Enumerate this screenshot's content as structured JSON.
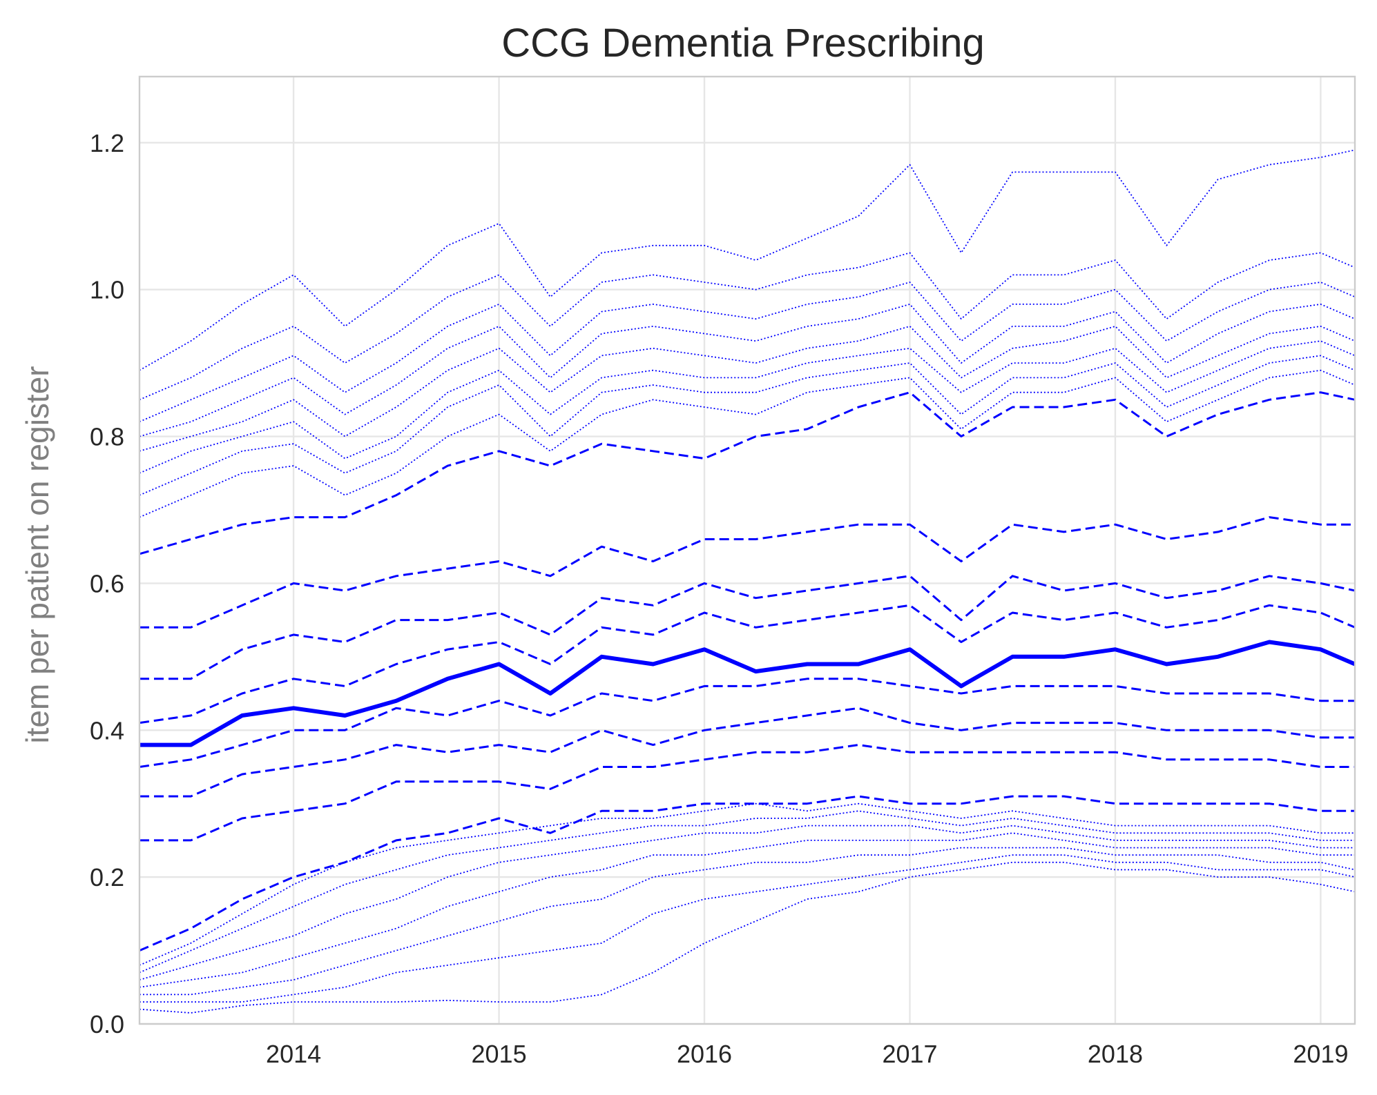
{
  "chart_data": {
    "type": "line",
    "title": "CCG Dementia Prescribing",
    "xlabel": "",
    "ylabel": "item per patient on register",
    "x_range": [
      "2013-04",
      "2019-03"
    ],
    "ylim": [
      0,
      1.29
    ],
    "x_tick_labels": [
      "2014",
      "2015",
      "2016",
      "2017",
      "2018",
      "2019"
    ],
    "y_tick_labels": [
      "0.0",
      "0.2",
      "0.4",
      "0.6",
      "0.8",
      "1.0",
      "1.2"
    ],
    "grid": true,
    "legend": "none",
    "line_color": "#0000ff",
    "line_styles": {
      "median": "solid",
      "inner_deciles": "dashed",
      "outer_percentiles": "dotted"
    },
    "x_dates": [
      "2013-04",
      "2013-07",
      "2013-10",
      "2014-01",
      "2014-04",
      "2014-07",
      "2014-10",
      "2015-01",
      "2015-04",
      "2015-07",
      "2015-10",
      "2016-01",
      "2016-04",
      "2016-07",
      "2016-10",
      "2017-01",
      "2017-04",
      "2017-07",
      "2017-10",
      "2018-01",
      "2018-04",
      "2018-07",
      "2018-10",
      "2019-01",
      "2019-03"
    ],
    "series": [
      {
        "style": "dotted",
        "values": [
          0.02,
          0.015,
          0.025,
          0.03,
          0.03,
          0.03,
          0.032,
          0.03,
          0.03,
          0.04,
          0.07,
          0.11,
          0.14,
          0.17,
          0.18,
          0.2,
          0.21,
          0.22,
          0.22,
          0.21,
          0.21,
          0.2,
          0.2,
          0.19,
          0.18
        ]
      },
      {
        "style": "dotted",
        "values": [
          0.03,
          0.03,
          0.03,
          0.04,
          0.05,
          0.07,
          0.08,
          0.09,
          0.1,
          0.11,
          0.15,
          0.17,
          0.18,
          0.19,
          0.2,
          0.21,
          0.22,
          0.23,
          0.23,
          0.22,
          0.22,
          0.21,
          0.21,
          0.21,
          0.2
        ]
      },
      {
        "style": "dotted",
        "values": [
          0.04,
          0.04,
          0.05,
          0.06,
          0.08,
          0.1,
          0.12,
          0.14,
          0.16,
          0.17,
          0.2,
          0.21,
          0.22,
          0.22,
          0.23,
          0.23,
          0.24,
          0.24,
          0.24,
          0.23,
          0.23,
          0.23,
          0.22,
          0.22,
          0.21
        ]
      },
      {
        "style": "dotted",
        "values": [
          0.05,
          0.06,
          0.07,
          0.09,
          0.11,
          0.13,
          0.16,
          0.18,
          0.2,
          0.21,
          0.23,
          0.23,
          0.24,
          0.25,
          0.25,
          0.25,
          0.25,
          0.26,
          0.25,
          0.24,
          0.24,
          0.24,
          0.24,
          0.23,
          0.23
        ]
      },
      {
        "style": "dotted",
        "values": [
          0.06,
          0.08,
          0.1,
          0.12,
          0.15,
          0.17,
          0.2,
          0.22,
          0.23,
          0.24,
          0.25,
          0.26,
          0.26,
          0.27,
          0.27,
          0.27,
          0.26,
          0.27,
          0.26,
          0.25,
          0.25,
          0.25,
          0.25,
          0.24,
          0.24
        ]
      },
      {
        "style": "dotted",
        "values": [
          0.07,
          0.1,
          0.13,
          0.16,
          0.19,
          0.21,
          0.23,
          0.24,
          0.25,
          0.26,
          0.27,
          0.27,
          0.28,
          0.28,
          0.29,
          0.28,
          0.27,
          0.28,
          0.27,
          0.26,
          0.26,
          0.26,
          0.26,
          0.25,
          0.25
        ]
      },
      {
        "style": "dotted",
        "values": [
          0.08,
          0.11,
          0.15,
          0.19,
          0.22,
          0.24,
          0.25,
          0.26,
          0.27,
          0.28,
          0.28,
          0.29,
          0.3,
          0.29,
          0.3,
          0.29,
          0.28,
          0.29,
          0.28,
          0.27,
          0.27,
          0.27,
          0.27,
          0.26,
          0.26
        ]
      },
      {
        "style": "dashed",
        "values": [
          0.1,
          0.13,
          0.17,
          0.2,
          0.22,
          0.25,
          0.26,
          0.28,
          0.26,
          0.29,
          0.29,
          0.3,
          0.3,
          0.3,
          0.31,
          0.3,
          0.3,
          0.31,
          0.31,
          0.3,
          0.3,
          0.3,
          0.3,
          0.29,
          0.29
        ]
      },
      {
        "style": "dashed",
        "values": [
          0.25,
          0.25,
          0.28,
          0.29,
          0.3,
          0.33,
          0.33,
          0.33,
          0.32,
          0.35,
          0.35,
          0.36,
          0.37,
          0.37,
          0.38,
          0.37,
          0.37,
          0.37,
          0.37,
          0.37,
          0.36,
          0.36,
          0.36,
          0.35,
          0.35
        ]
      },
      {
        "style": "dashed",
        "values": [
          0.31,
          0.31,
          0.34,
          0.35,
          0.36,
          0.38,
          0.37,
          0.38,
          0.37,
          0.4,
          0.38,
          0.4,
          0.41,
          0.42,
          0.43,
          0.41,
          0.4,
          0.41,
          0.41,
          0.41,
          0.4,
          0.4,
          0.4,
          0.39,
          0.39
        ]
      },
      {
        "style": "dashed",
        "values": [
          0.35,
          0.36,
          0.38,
          0.4,
          0.4,
          0.43,
          0.42,
          0.44,
          0.42,
          0.45,
          0.44,
          0.46,
          0.46,
          0.47,
          0.47,
          0.46,
          0.45,
          0.46,
          0.46,
          0.46,
          0.45,
          0.45,
          0.45,
          0.44,
          0.44
        ]
      },
      {
        "style": "solid",
        "values": [
          0.38,
          0.38,
          0.42,
          0.43,
          0.42,
          0.44,
          0.47,
          0.49,
          0.45,
          0.5,
          0.49,
          0.51,
          0.48,
          0.49,
          0.49,
          0.51,
          0.46,
          0.5,
          0.5,
          0.51,
          0.49,
          0.5,
          0.52,
          0.51,
          0.49
        ]
      },
      {
        "style": "dashed",
        "values": [
          0.41,
          0.42,
          0.45,
          0.47,
          0.46,
          0.49,
          0.51,
          0.52,
          0.49,
          0.54,
          0.53,
          0.56,
          0.54,
          0.55,
          0.56,
          0.57,
          0.52,
          0.56,
          0.55,
          0.56,
          0.54,
          0.55,
          0.57,
          0.56,
          0.54
        ]
      },
      {
        "style": "dashed",
        "values": [
          0.47,
          0.47,
          0.51,
          0.53,
          0.52,
          0.55,
          0.55,
          0.56,
          0.53,
          0.58,
          0.57,
          0.6,
          0.58,
          0.59,
          0.6,
          0.61,
          0.55,
          0.61,
          0.59,
          0.6,
          0.58,
          0.59,
          0.61,
          0.6,
          0.59
        ]
      },
      {
        "style": "dashed",
        "values": [
          0.54,
          0.54,
          0.57,
          0.6,
          0.59,
          0.61,
          0.62,
          0.63,
          0.61,
          0.65,
          0.63,
          0.66,
          0.66,
          0.67,
          0.68,
          0.68,
          0.63,
          0.68,
          0.67,
          0.68,
          0.66,
          0.67,
          0.69,
          0.68,
          0.68
        ]
      },
      {
        "style": "dashed",
        "values": [
          0.64,
          0.66,
          0.68,
          0.69,
          0.69,
          0.72,
          0.76,
          0.78,
          0.76,
          0.79,
          0.78,
          0.77,
          0.8,
          0.81,
          0.84,
          0.86,
          0.8,
          0.84,
          0.84,
          0.85,
          0.8,
          0.83,
          0.85,
          0.86,
          0.85
        ]
      },
      {
        "style": "dotted",
        "values": [
          0.69,
          0.72,
          0.75,
          0.76,
          0.72,
          0.75,
          0.8,
          0.83,
          0.78,
          0.83,
          0.85,
          0.84,
          0.83,
          0.86,
          0.87,
          0.88,
          0.81,
          0.86,
          0.86,
          0.88,
          0.82,
          0.85,
          0.88,
          0.89,
          0.87
        ]
      },
      {
        "style": "dotted",
        "values": [
          0.72,
          0.75,
          0.78,
          0.79,
          0.75,
          0.78,
          0.84,
          0.87,
          0.8,
          0.86,
          0.87,
          0.86,
          0.86,
          0.88,
          0.89,
          0.9,
          0.83,
          0.88,
          0.88,
          0.9,
          0.84,
          0.87,
          0.9,
          0.91,
          0.89
        ]
      },
      {
        "style": "dotted",
        "values": [
          0.75,
          0.78,
          0.8,
          0.82,
          0.77,
          0.8,
          0.86,
          0.89,
          0.83,
          0.88,
          0.89,
          0.88,
          0.88,
          0.9,
          0.91,
          0.92,
          0.86,
          0.9,
          0.9,
          0.92,
          0.86,
          0.89,
          0.92,
          0.93,
          0.91
        ]
      },
      {
        "style": "dotted",
        "values": [
          0.78,
          0.8,
          0.82,
          0.85,
          0.8,
          0.84,
          0.89,
          0.92,
          0.86,
          0.91,
          0.92,
          0.91,
          0.9,
          0.92,
          0.93,
          0.95,
          0.88,
          0.92,
          0.93,
          0.95,
          0.88,
          0.91,
          0.94,
          0.95,
          0.93
        ]
      },
      {
        "style": "dotted",
        "values": [
          0.8,
          0.82,
          0.85,
          0.88,
          0.83,
          0.87,
          0.92,
          0.95,
          0.88,
          0.94,
          0.95,
          0.94,
          0.93,
          0.95,
          0.96,
          0.98,
          0.9,
          0.95,
          0.95,
          0.97,
          0.9,
          0.94,
          0.97,
          0.98,
          0.96
        ]
      },
      {
        "style": "dotted",
        "values": [
          0.82,
          0.85,
          0.88,
          0.91,
          0.86,
          0.9,
          0.95,
          0.98,
          0.91,
          0.97,
          0.98,
          0.97,
          0.96,
          0.98,
          0.99,
          1.01,
          0.93,
          0.98,
          0.98,
          1.0,
          0.93,
          0.97,
          1.0,
          1.01,
          0.99
        ]
      },
      {
        "style": "dotted",
        "values": [
          0.85,
          0.88,
          0.92,
          0.95,
          0.9,
          0.94,
          0.99,
          1.02,
          0.95,
          1.01,
          1.02,
          1.01,
          1.0,
          1.02,
          1.03,
          1.05,
          0.96,
          1.02,
          1.02,
          1.04,
          0.96,
          1.01,
          1.04,
          1.05,
          1.03
        ]
      },
      {
        "style": "dotted",
        "values": [
          0.89,
          0.93,
          0.98,
          1.02,
          0.95,
          1.0,
          1.06,
          1.09,
          0.99,
          1.05,
          1.06,
          1.06,
          1.04,
          1.07,
          1.1,
          1.17,
          1.05,
          1.16,
          1.16,
          1.16,
          1.06,
          1.15,
          1.17,
          1.18,
          1.19
        ]
      }
    ]
  }
}
